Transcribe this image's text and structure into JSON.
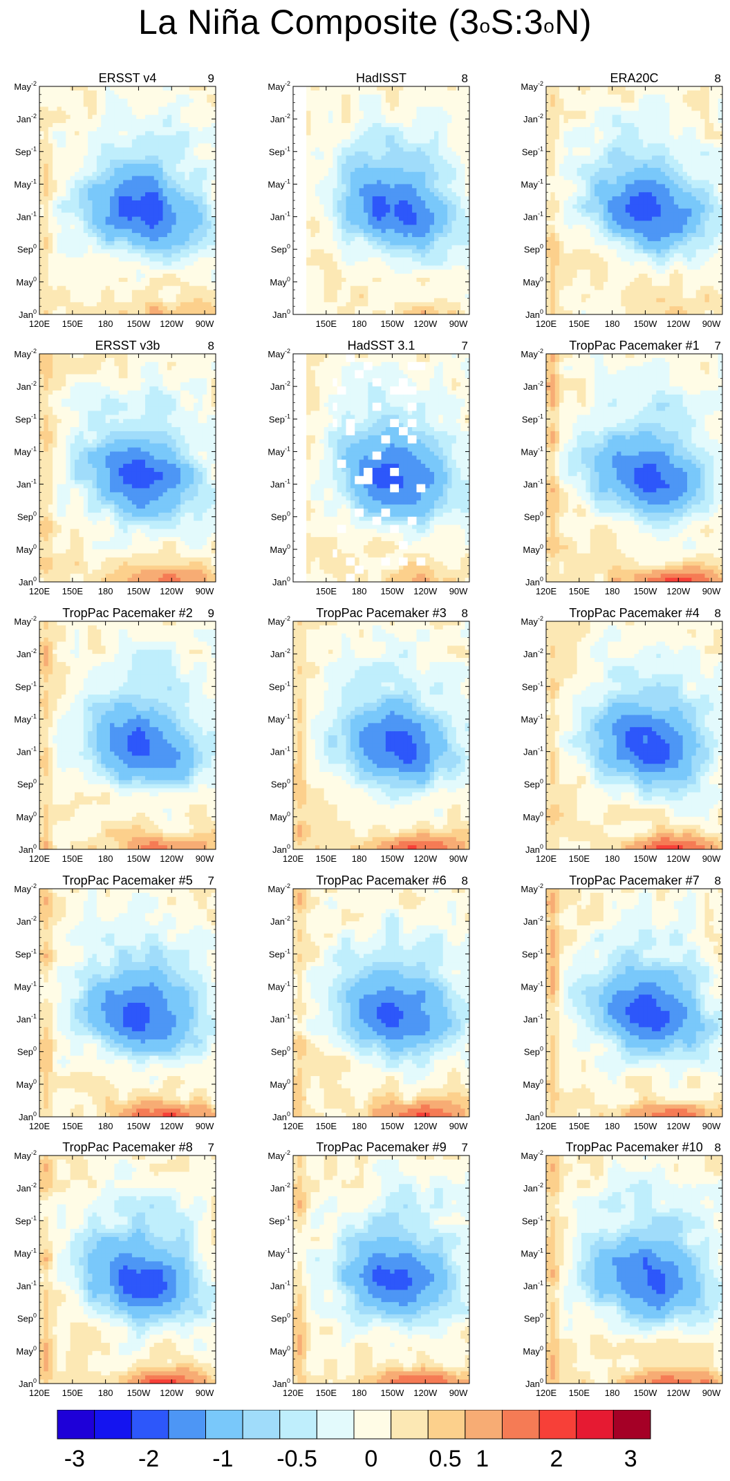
{
  "figure": {
    "title": "La Niña Composite (3°S:3°N)",
    "title_main": "La Niña Composite (3",
    "title_deg1": "o",
    "title_mid": "S:3",
    "title_deg2": "o",
    "title_end": "N)"
  },
  "colors": {
    "palette": [
      "#1e00d8",
      "#1414f0",
      "#2d57fa",
      "#4d96f5",
      "#79c8fa",
      "#a0dcfa",
      "#bfeefc",
      "#e3fafc",
      "#fffce6",
      "#fce8b4",
      "#fcd08c",
      "#f7ac74",
      "#f57b55",
      "#f74038",
      "#e61a32",
      "#a50026"
    ],
    "contour": "#707070",
    "frame": "#000000",
    "missing": "#ffffff"
  },
  "chart_data": {
    "type": "heatmap",
    "description_key": "Hovmoller composites of SST anomaly averaged 3S-3N",
    "x_ticks": [
      "120E",
      "150E",
      "180",
      "150W",
      "120W",
      "90W"
    ],
    "x_tick_lon": [
      120,
      150,
      180,
      210,
      240,
      270
    ],
    "xlim_lon": [
      120,
      280
    ],
    "y_ticks": [
      {
        "base": "Jan",
        "sup": "0",
        "month": 0
      },
      {
        "base": "May",
        "sup": "0",
        "month": 4
      },
      {
        "base": "Sep",
        "sup": "0",
        "month": 8
      },
      {
        "base": "Jan",
        "sup": "-1",
        "month": 12
      },
      {
        "base": "May",
        "sup": "-1",
        "month": 16
      },
      {
        "base": "Sep",
        "sup": "-1",
        "month": 20
      },
      {
        "base": "Jan",
        "sup": "-2",
        "month": 24
      },
      {
        "base": "May",
        "sup": "-2",
        "month": 28
      }
    ],
    "ylim_months": [
      0,
      28
    ],
    "levels": [
      -3,
      -2.5,
      -2,
      -1.5,
      -1,
      -0.75,
      -0.5,
      -0.25,
      0,
      0.25,
      0.5,
      1,
      1.5,
      2,
      2.5,
      3
    ],
    "colorbar_labels": [
      "-3",
      "-2",
      "-1",
      "-0.5",
      "0",
      "0.5",
      "1",
      "2",
      "3"
    ],
    "colorbar_label_index": [
      0,
      2,
      4,
      6,
      8,
      10,
      11,
      13,
      15
    ],
    "panels": [
      {
        "title": "ERSST v4",
        "count": "9",
        "min_anom": -2.2,
        "west_warm": 0.3,
        "east_warm": 0.5,
        "show_120E": true
      },
      {
        "title": "HadISST",
        "count": "8",
        "min_anom": -2.1,
        "west_warm": 0.3,
        "east_warm": 0.3,
        "show_120E": false
      },
      {
        "title": "ERA20C",
        "count": "8",
        "min_anom": -2.1,
        "west_warm": 0.3,
        "east_warm": 0.3,
        "show_120E": true
      },
      {
        "title": "ERSST v3b",
        "count": "8",
        "min_anom": -2.1,
        "west_warm": 0.3,
        "east_warm": 1.2,
        "show_120E": true
      },
      {
        "title": "HadSST 3.1",
        "count": "7",
        "min_anom": -2.1,
        "west_warm": 0.3,
        "east_warm": 0.5,
        "show_120E": false
      },
      {
        "title": "TropPac Pacemaker #1",
        "count": "7",
        "min_anom": -2.1,
        "west_warm": 0.6,
        "east_warm": 1.6,
        "show_120E": true
      },
      {
        "title": "TropPac Pacemaker #2",
        "count": "9",
        "min_anom": -2.0,
        "west_warm": 0.4,
        "east_warm": 1.2,
        "show_120E": true
      },
      {
        "title": "TropPac Pacemaker #3",
        "count": "8",
        "min_anom": -2.0,
        "west_warm": 0.4,
        "east_warm": 1.6,
        "show_120E": true
      },
      {
        "title": "TropPac Pacemaker #4",
        "count": "8",
        "min_anom": -2.1,
        "west_warm": 0.4,
        "east_warm": 1.7,
        "show_120E": true
      },
      {
        "title": "TropPac Pacemaker #5",
        "count": "7",
        "min_anom": -2.1,
        "west_warm": 0.4,
        "east_warm": 1.5,
        "show_120E": true
      },
      {
        "title": "TropPac Pacemaker #6",
        "count": "8",
        "min_anom": -2.1,
        "west_warm": 0.4,
        "east_warm": 1.5,
        "show_120E": true
      },
      {
        "title": "TropPac Pacemaker #7",
        "count": "8",
        "min_anom": -2.1,
        "west_warm": 0.6,
        "east_warm": 1.4,
        "show_120E": true
      },
      {
        "title": "TropPac Pacemaker #8",
        "count": "7",
        "min_anom": -2.1,
        "west_warm": 0.4,
        "east_warm": 1.5,
        "show_120E": true
      },
      {
        "title": "TropPac Pacemaker #9",
        "count": "7",
        "min_anom": -2.1,
        "west_warm": 0.4,
        "east_warm": 1.5,
        "show_120E": true
      },
      {
        "title": "TropPac Pacemaker #10",
        "count": "8",
        "min_anom": -2.1,
        "west_warm": 0.4,
        "east_warm": 1.5,
        "show_120E": true
      }
    ]
  }
}
